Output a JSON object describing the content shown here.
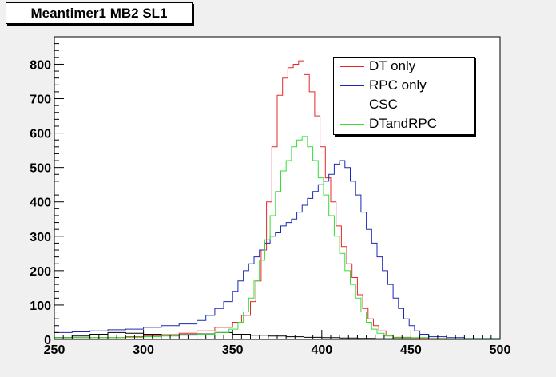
{
  "title": "Meantimer1 MB2 SL1",
  "chart_data": {
    "type": "line",
    "title": "Meantimer1 MB2 SL1",
    "xlabel": "",
    "ylabel": "",
    "xlim": [
      250,
      500
    ],
    "ylim": [
      0,
      880
    ],
    "x_ticks": [
      "250",
      "300",
      "350",
      "400",
      "450",
      "500"
    ],
    "y_ticks": [
      "0",
      "100",
      "200",
      "300",
      "400",
      "500",
      "600",
      "700",
      "800"
    ],
    "grid": false,
    "legend_position": "top-right",
    "series": [
      {
        "name": "DT only",
        "color": "#e8262a",
        "points": [
          [
            250,
            5
          ],
          [
            270,
            5
          ],
          [
            290,
            8
          ],
          [
            300,
            10
          ],
          [
            310,
            14
          ],
          [
            320,
            18
          ],
          [
            330,
            25
          ],
          [
            340,
            35
          ],
          [
            350,
            50
          ],
          [
            355,
            70
          ],
          [
            360,
            110
          ],
          [
            363,
            170
          ],
          [
            366,
            260
          ],
          [
            369,
            400
          ],
          [
            372,
            560
          ],
          [
            375,
            710
          ],
          [
            378,
            760
          ],
          [
            381,
            790
          ],
          [
            384,
            800
          ],
          [
            387,
            810
          ],
          [
            390,
            770
          ],
          [
            393,
            720
          ],
          [
            396,
            650
          ],
          [
            399,
            560
          ],
          [
            402,
            470
          ],
          [
            405,
            400
          ],
          [
            408,
            330
          ],
          [
            411,
            270
          ],
          [
            414,
            220
          ],
          [
            417,
            180
          ],
          [
            420,
            130
          ],
          [
            423,
            90
          ],
          [
            426,
            60
          ],
          [
            429,
            40
          ],
          [
            432,
            25
          ],
          [
            436,
            12
          ],
          [
            440,
            6
          ],
          [
            450,
            3
          ],
          [
            470,
            2
          ],
          [
            500,
            2
          ]
        ]
      },
      {
        "name": "RPC only",
        "color": "#1a28b4",
        "points": [
          [
            250,
            20
          ],
          [
            260,
            22
          ],
          [
            270,
            25
          ],
          [
            280,
            28
          ],
          [
            290,
            30
          ],
          [
            300,
            35
          ],
          [
            310,
            40
          ],
          [
            320,
            45
          ],
          [
            330,
            55
          ],
          [
            335,
            70
          ],
          [
            340,
            90
          ],
          [
            345,
            110
          ],
          [
            350,
            140
          ],
          [
            353,
            170
          ],
          [
            356,
            200
          ],
          [
            359,
            220
          ],
          [
            362,
            240
          ],
          [
            365,
            260
          ],
          [
            368,
            280
          ],
          [
            371,
            300
          ],
          [
            374,
            310
          ],
          [
            377,
            330
          ],
          [
            380,
            340
          ],
          [
            383,
            350
          ],
          [
            386,
            370
          ],
          [
            389,
            390
          ],
          [
            392,
            410
          ],
          [
            395,
            430
          ],
          [
            398,
            450
          ],
          [
            401,
            460
          ],
          [
            404,
            480
          ],
          [
            407,
            510
          ],
          [
            410,
            520
          ],
          [
            413,
            500
          ],
          [
            416,
            460
          ],
          [
            419,
            420
          ],
          [
            422,
            370
          ],
          [
            425,
            320
          ],
          [
            428,
            280
          ],
          [
            431,
            240
          ],
          [
            434,
            200
          ],
          [
            437,
            160
          ],
          [
            440,
            120
          ],
          [
            443,
            90
          ],
          [
            446,
            60
          ],
          [
            449,
            40
          ],
          [
            452,
            25
          ],
          [
            455,
            15
          ],
          [
            460,
            8
          ],
          [
            470,
            5
          ],
          [
            480,
            3
          ],
          [
            500,
            2
          ]
        ]
      },
      {
        "name": "CSC",
        "color": "#000000",
        "points": [
          [
            250,
            5
          ],
          [
            260,
            10
          ],
          [
            270,
            15
          ],
          [
            280,
            20
          ],
          [
            290,
            18
          ],
          [
            300,
            15
          ],
          [
            310,
            12
          ],
          [
            320,
            14
          ],
          [
            330,
            16
          ],
          [
            340,
            20
          ],
          [
            350,
            15
          ],
          [
            360,
            12
          ],
          [
            370,
            10
          ],
          [
            380,
            8
          ],
          [
            390,
            6
          ],
          [
            400,
            5
          ],
          [
            410,
            4
          ],
          [
            420,
            3
          ],
          [
            430,
            2
          ],
          [
            440,
            2
          ],
          [
            450,
            1
          ],
          [
            470,
            1
          ],
          [
            500,
            1
          ]
        ]
      },
      {
        "name": "DTandRPC",
        "color": "#33dd33",
        "points": [
          [
            250,
            5
          ],
          [
            270,
            5
          ],
          [
            290,
            6
          ],
          [
            300,
            8
          ],
          [
            310,
            10
          ],
          [
            320,
            12
          ],
          [
            330,
            15
          ],
          [
            340,
            20
          ],
          [
            348,
            30
          ],
          [
            353,
            50
          ],
          [
            356,
            80
          ],
          [
            359,
            120
          ],
          [
            362,
            170
          ],
          [
            365,
            230
          ],
          [
            368,
            290
          ],
          [
            371,
            360
          ],
          [
            374,
            430
          ],
          [
            377,
            490
          ],
          [
            380,
            520
          ],
          [
            383,
            560
          ],
          [
            386,
            580
          ],
          [
            389,
            590
          ],
          [
            392,
            560
          ],
          [
            395,
            520
          ],
          [
            398,
            470
          ],
          [
            401,
            420
          ],
          [
            404,
            360
          ],
          [
            407,
            300
          ],
          [
            410,
            250
          ],
          [
            413,
            200
          ],
          [
            416,
            160
          ],
          [
            419,
            120
          ],
          [
            422,
            80
          ],
          [
            425,
            50
          ],
          [
            428,
            30
          ],
          [
            431,
            18
          ],
          [
            435,
            10
          ],
          [
            440,
            5
          ],
          [
            460,
            2
          ],
          [
            500,
            1
          ]
        ]
      }
    ]
  }
}
